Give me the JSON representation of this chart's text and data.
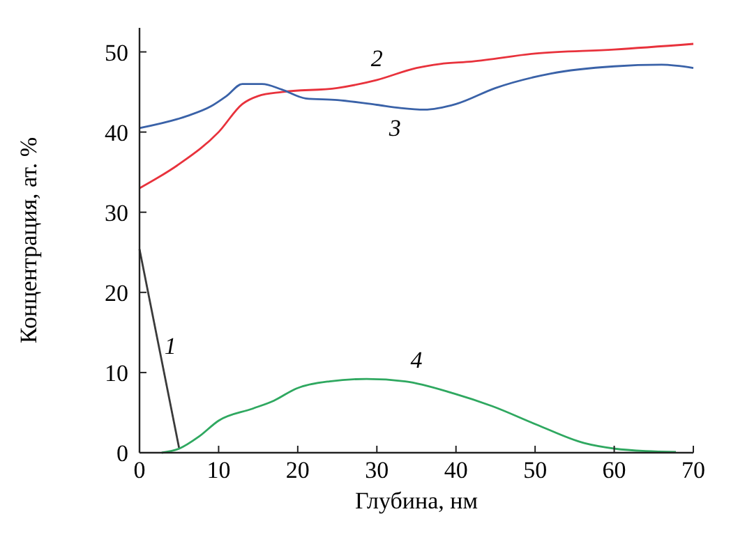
{
  "chart_data": {
    "type": "line",
    "xlabel": "Глубина, нм",
    "ylabel": "Концентрация, ат. %",
    "xlim": [
      0,
      70
    ],
    "xticks": [
      0,
      10,
      20,
      30,
      40,
      50,
      60,
      70
    ],
    "ylim": [
      0,
      53
    ],
    "yticks": [
      0,
      10,
      20,
      30,
      40,
      50
    ],
    "marker": "none",
    "line_style": "solid",
    "series": [
      {
        "name": "1",
        "color": "#3a3a3a",
        "x": [
          0,
          5
        ],
        "values": [
          25.4,
          0.6
        ]
      },
      {
        "name": "2",
        "color": "#e8323c",
        "x": [
          0,
          5,
          10,
          13,
          15,
          18,
          25,
          30,
          35,
          38,
          42,
          50,
          60,
          70
        ],
        "values": [
          33,
          36,
          40,
          43.5,
          44.5,
          45,
          45.5,
          46.5,
          48,
          48.5,
          48.8,
          49.8,
          50.3,
          51
        ]
      },
      {
        "name": "3",
        "color": "#3a62a8",
        "x": [
          0,
          6,
          9,
          11,
          13,
          15.5,
          18,
          21,
          25,
          30,
          33,
          36,
          40,
          45,
          52,
          60,
          66,
          70
        ],
        "values": [
          40.5,
          42,
          43.2,
          44.5,
          46,
          46,
          45.3,
          44.2,
          44,
          43.4,
          43,
          42.8,
          43.5,
          45.5,
          47.3,
          48.2,
          48.4,
          48
        ]
      },
      {
        "name": "4",
        "color": "#2fa860",
        "x": [
          2.8,
          5,
          7.5,
          10,
          14.3,
          17,
          19.8,
          24,
          28.7,
          33.6,
          39.7,
          44.6,
          50.2,
          56.2,
          60.1,
          64,
          67.8
        ],
        "values": [
          0,
          0.5,
          2,
          4,
          5.5,
          6.5,
          8,
          8.9,
          9.2,
          8.9,
          7.4,
          5.8,
          3.5,
          1.2,
          0.5,
          0.2,
          0.1
        ]
      }
    ]
  }
}
